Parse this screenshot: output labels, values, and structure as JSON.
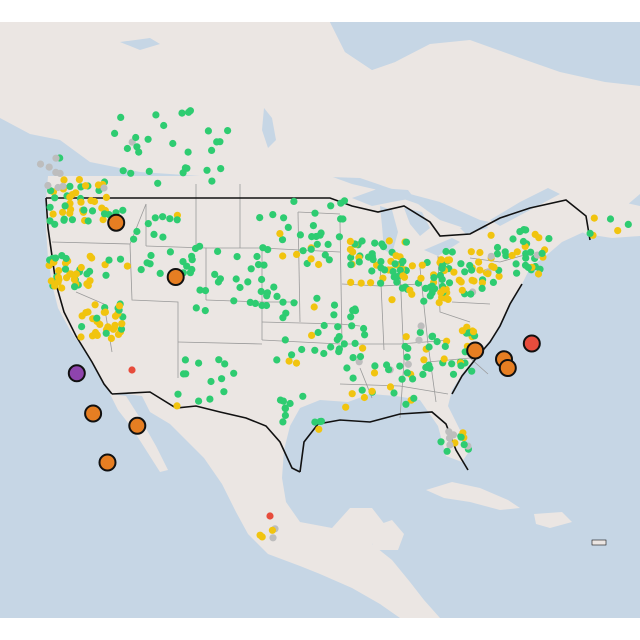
{
  "map": {
    "colors": {
      "water": "#c6d6e5",
      "land": "#ebe6e3",
      "state_border": "#9a9a9a",
      "country_border": "#111111",
      "good": "#2ecc71",
      "moderate": "#f1c40f",
      "usg": "#e67e22",
      "unhealthy": "#e74c3c",
      "very_unhealthy": "#8e44ad",
      "no_data": "#bdbdbd"
    },
    "categories": [
      "good",
      "moderate",
      "usg",
      "unhealthy",
      "very_unhealthy",
      "no_data"
    ],
    "highlighted_sites": [
      {
        "category": "usg",
        "lon": -117.4,
        "lat": 47.7
      },
      {
        "category": "usg",
        "lon": -111.2,
        "lat": 44.6
      },
      {
        "category": "very_unhealthy",
        "lon": -121.5,
        "lat": 39.1
      },
      {
        "category": "usg",
        "lon": -119.8,
        "lat": 36.8
      },
      {
        "category": "usg",
        "lon": -115.2,
        "lat": 36.1
      },
      {
        "category": "usg",
        "lon": -118.3,
        "lat": 34.0
      },
      {
        "category": "usg",
        "lon": -80.0,
        "lat": 40.4
      },
      {
        "category": "usg",
        "lon": -77.0,
        "lat": 39.9
      },
      {
        "category": "usg",
        "lon": -76.6,
        "lat": 39.4
      },
      {
        "category": "unhealthy",
        "lon": -74.1,
        "lat": 40.8
      }
    ]
  }
}
